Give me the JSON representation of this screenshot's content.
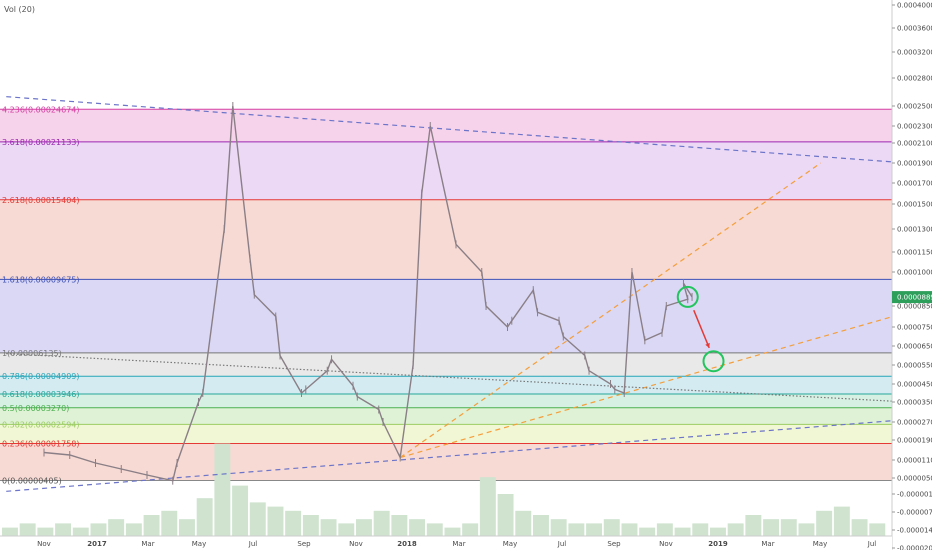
{
  "indicator": {
    "label": "Vol (20)"
  },
  "current_price": {
    "label": "0.00008893",
    "value": 8.893e-05,
    "color": "#2e9e5b"
  },
  "colors": {
    "candle": "#8a7f86",
    "volume": "#cfe3cf",
    "orange_line": "#f59e3a",
    "blue_line": "#6b74c9",
    "arrow": "#e53935",
    "circle": "#22c55e"
  },
  "chart_data": {
    "type": "line",
    "title": "",
    "y_axis": {
      "side": "right",
      "ticks": [
        "0.00040000",
        "0.00036000",
        "0.00032000",
        "0.00028000",
        "0.00025000",
        "0.00023000",
        "0.00021000",
        "0.00019000",
        "0.00017000",
        "0.00015000",
        "0.00013000",
        "0.00011500",
        "0.00010000",
        "0.00008500",
        "0.00007500",
        "0.00006500",
        "0.00005500",
        "0.00004500",
        "0.00003500",
        "0.00002700",
        "0.00001900",
        "0.00001100",
        "0.00000500",
        "-0.00000100",
        "-0.00000700",
        "-0.00001400",
        "-0.00002050"
      ]
    },
    "x_axis": {
      "ticks": [
        "Nov",
        "2017",
        "Mar",
        "May",
        "Jul",
        "Sep",
        "Nov",
        "2018",
        "Mar",
        "May",
        "Jul",
        "Sep",
        "Nov",
        "2019",
        "Mar",
        "May",
        "Jul"
      ]
    },
    "fib_levels": [
      {
        "label": "4.236(0.00024674)",
        "value": 0.00024674,
        "color": "#d63fa3",
        "fill": "#f4cbe8"
      },
      {
        "label": "3.618(0.00021133)",
        "value": 0.00021133,
        "color": "#9c27b0",
        "fill": "#e8d2f3"
      },
      {
        "label": "2.618(0.00015404)",
        "value": 0.00015404,
        "color": "#e53935",
        "fill": "#f6d3cd"
      },
      {
        "label": "1.618(0.00009675)",
        "value": 9.675e-05,
        "color": "#3f51b5",
        "fill": "#d3d1f3"
      },
      {
        "label": "1(0.00006135)",
        "value": 6.135e-05,
        "color": "#777777",
        "fill": "#e5e5e5"
      },
      {
        "label": "0.786(0.00004909)",
        "value": 4.909e-05,
        "color": "#26a6b8",
        "fill": "#cbe8ee"
      },
      {
        "label": "0.618(0.00003946)",
        "value": 3.946e-05,
        "color": "#26a69a",
        "fill": "#cfeede"
      },
      {
        "label": "0.5(0.00003270)",
        "value": 3.27e-05,
        "color": "#4caf50",
        "fill": "#d9f0cf"
      },
      {
        "label": "0.382(0.00002594)",
        "value": 2.594e-05,
        "color": "#9ccc65",
        "fill": "#eef4cc"
      },
      {
        "label": "0.236(0.00001758)",
        "value": 1.758e-05,
        "color": "#e53935",
        "fill": "#f6d3cd"
      },
      {
        "label": "0(0.00000405)",
        "value": 4.05e-06
      }
    ],
    "price_series": [
      {
        "date": "2016-10",
        "value": 1.4e-05
      },
      {
        "date": "2016-11",
        "value": 1.3e-05
      },
      {
        "date": "2016-12",
        "value": 1e-05
      },
      {
        "date": "2017-01",
        "value": 8e-06
      },
      {
        "date": "2017-02",
        "value": 6e-06
      },
      {
        "date": "2017-03",
        "value": 4e-06
      },
      {
        "date": "2017-03-20",
        "value": 1e-05
      },
      {
        "date": "2017-04",
        "value": 3.5e-05
      },
      {
        "date": "2017-04-20",
        "value": 4e-05
      },
      {
        "date": "2017-05",
        "value": 0.00013
      },
      {
        "date": "2017-05-25",
        "value": 0.00025
      },
      {
        "date": "2017-06",
        "value": 0.00011
      },
      {
        "date": "2017-06-20",
        "value": 9e-05
      },
      {
        "date": "2017-07",
        "value": 8e-05
      },
      {
        "date": "2017-07-20",
        "value": 6e-05
      },
      {
        "date": "2017-08",
        "value": 4e-05
      },
      {
        "date": "2017-08-20",
        "value": 4.2e-05
      },
      {
        "date": "2017-09",
        "value": 5.2e-05
      },
      {
        "date": "2017-09-20",
        "value": 5.8e-05
      },
      {
        "date": "2017-10",
        "value": 4.4e-05
      },
      {
        "date": "2017-10-20",
        "value": 3.8e-05
      },
      {
        "date": "2017-11",
        "value": 3.2e-05
      },
      {
        "date": "2017-11-20",
        "value": 2.7e-05
      },
      {
        "date": "2017-12-10",
        "value": 1.2e-05
      },
      {
        "date": "2017-12-25",
        "value": 5.5e-05
      },
      {
        "date": "2018-01-05",
        "value": 0.00016
      },
      {
        "date": "2018-01-15",
        "value": 0.00023
      },
      {
        "date": "2018-02",
        "value": 0.00012
      },
      {
        "date": "2018-03",
        "value": 0.0001
      },
      {
        "date": "2018-03-20",
        "value": 8.5e-05
      },
      {
        "date": "2018-04",
        "value": 7.5e-05
      },
      {
        "date": "2018-04-20",
        "value": 7.8e-05
      },
      {
        "date": "2018-05",
        "value": 9.2e-05
      },
      {
        "date": "2018-05-20",
        "value": 8.2e-05
      },
      {
        "date": "2018-06",
        "value": 7.8e-05
      },
      {
        "date": "2018-06-20",
        "value": 7e-05
      },
      {
        "date": "2018-07",
        "value": 6e-05
      },
      {
        "date": "2018-07-20",
        "value": 5.2e-05
      },
      {
        "date": "2018-08",
        "value": 4.5e-05
      },
      {
        "date": "2018-08-20",
        "value": 4.2e-05
      },
      {
        "date": "2018-09-01",
        "value": 4e-05
      },
      {
        "date": "2018-09-10",
        "value": 0.0001
      },
      {
        "date": "2018-09-25",
        "value": 6.8e-05
      },
      {
        "date": "2018-10",
        "value": 7.2e-05
      },
      {
        "date": "2018-10-20",
        "value": 8.5e-05
      },
      {
        "date": "2018-11",
        "value": 8.8e-05
      },
      {
        "date": "2018-11-10",
        "value": 9.5e-05
      },
      {
        "date": "2018-11-20",
        "value": 8.9e-05
      }
    ],
    "trend_lines": [
      {
        "name": "",
        "style": "dashed",
        "color": "#f59e3a",
        "points": [
          [
            "2017-12-10",
            1.2e-05
          ],
          [
            "2019-04-20",
            0.00019
          ]
        ]
      },
      {
        "name": "",
        "style": "dashed",
        "color": "#f59e3a",
        "points": [
          [
            "2017-12-10",
            1.2e-05
          ],
          [
            "2019-08-01",
            8.2e-05
          ]
        ]
      },
      {
        "name": "",
        "style": "dashed",
        "color": "#6b74c9",
        "points": [
          [
            "2016-09-01",
            0.00026
          ],
          [
            "2019-08-01",
            0.00019
          ]
        ]
      },
      {
        "name": "",
        "style": "dashed",
        "color": "#6b74c9",
        "points": [
          [
            "2016-09-01",
            0.0
          ],
          [
            "2019-08-01",
            2.8e-05
          ]
        ]
      },
      {
        "name": "",
        "style": "dotted",
        "color": "#777777",
        "points": [
          [
            "2016-09-01",
            6.1e-05
          ],
          [
            "2019-08-01",
            3.5e-05
          ]
        ]
      }
    ],
    "volume": [
      2,
      3,
      2,
      3,
      2,
      3,
      4,
      3,
      5,
      6,
      4,
      9,
      22,
      12,
      8,
      7,
      6,
      5,
      4,
      3,
      4,
      6,
      5,
      4,
      3,
      2,
      3,
      14,
      10,
      6,
      5,
      4,
      3,
      3,
      4,
      3,
      2,
      3,
      2,
      3,
      2,
      3,
      5,
      4,
      4,
      3,
      6,
      7,
      4,
      3
    ],
    "annotations": [
      {
        "type": "circle",
        "date": "2018-11-15",
        "value": 8.9e-05
      },
      {
        "type": "circle",
        "date": "2018-12-15",
        "value": 5.7e-05
      },
      {
        "type": "arrow",
        "from": [
          "2018-11-22",
          8.3e-05
        ],
        "to": [
          "2018-12-10",
          6.4e-05
        ]
      }
    ]
  }
}
